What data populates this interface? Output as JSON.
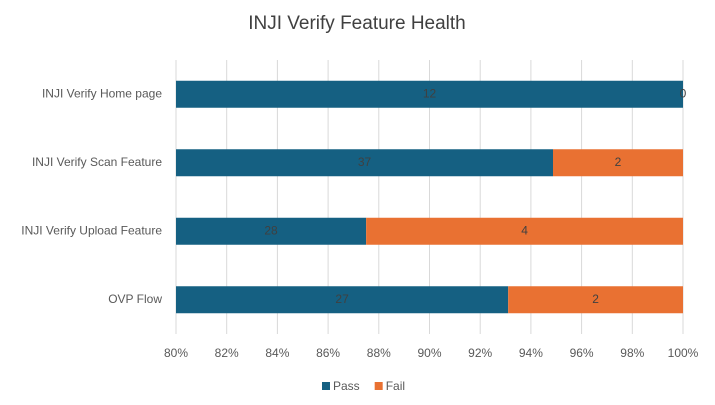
{
  "chart_data": {
    "type": "bar",
    "orientation": "horizontal",
    "stacking": "percent",
    "title": "INJI Verify Feature Health",
    "categories": [
      "INJI Verify Home page",
      "INJI Verify Scan Feature",
      "INJI Verify Upload Feature",
      "OVP Flow"
    ],
    "series": [
      {
        "name": "Pass",
        "color": "#156082",
        "values": [
          12,
          37,
          28,
          27
        ]
      },
      {
        "name": "Fail",
        "color": "#e97132",
        "values": [
          0,
          2,
          4,
          2
        ]
      }
    ],
    "xlim": [
      80,
      100
    ],
    "xticks": [
      {
        "value": 80,
        "label": "80%"
      },
      {
        "value": 82,
        "label": "82%"
      },
      {
        "value": 84,
        "label": "84%"
      },
      {
        "value": 86,
        "label": "86%"
      },
      {
        "value": 88,
        "label": "88%"
      },
      {
        "value": 90,
        "label": "90%"
      },
      {
        "value": 92,
        "label": "92%"
      },
      {
        "value": 94,
        "label": "94%"
      },
      {
        "value": 96,
        "label": "96%"
      },
      {
        "value": 98,
        "label": "98%"
      },
      {
        "value": 100,
        "label": "100%"
      }
    ],
    "grid": true,
    "legend": "bottom"
  }
}
